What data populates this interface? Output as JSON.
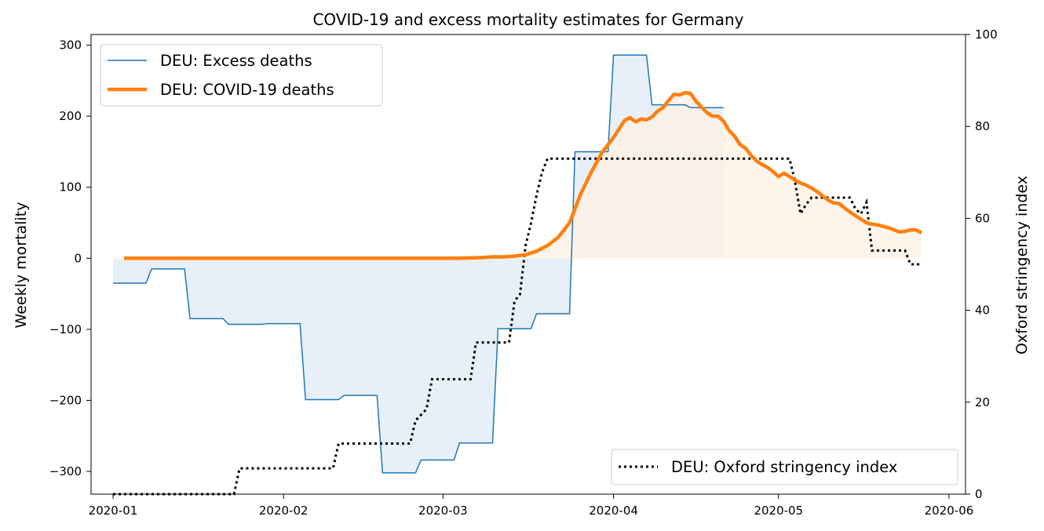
{
  "chart_data": {
    "type": "line",
    "title": "COVID-19 and excess mortality estimates for Germany",
    "ylabel": "Weekly mortality",
    "ylabel_right": "Oxford stringency index",
    "ylim": [
      -332,
      315
    ],
    "ylim_right": [
      0,
      100
    ],
    "xlim": [
      "2019-12-28",
      "2020-06-04"
    ],
    "x_ticks": [
      "2020-01",
      "2020-02",
      "2020-03",
      "2020-04",
      "2020-05",
      "2020-06"
    ],
    "y_ticks": [
      "300",
      "200",
      "100",
      "0",
      "−100",
      "−200",
      "−300"
    ],
    "y_right_ticks": [
      "100",
      "80",
      "60",
      "40",
      "20",
      "0"
    ],
    "grid": false,
    "legend_left": {
      "placement": "top-left",
      "entries": [
        "DEU: Excess deaths",
        "DEU: COVID-19 deaths"
      ]
    },
    "legend_right": {
      "placement": "bottom-right",
      "entries": [
        "DEU: Oxford stringency index"
      ]
    },
    "series": [
      {
        "name": "DEU: Excess deaths",
        "axis": "left",
        "color": "#1f77b4",
        "fill": "#e7f0f8",
        "style": "step",
        "x": [
          "2020-01-01",
          "2020-01-07",
          "2020-01-08",
          "2020-01-14",
          "2020-01-15",
          "2020-01-21",
          "2020-01-22",
          "2020-01-28",
          "2020-01-29",
          "2020-02-04",
          "2020-02-05",
          "2020-02-11",
          "2020-02-12",
          "2020-02-18",
          "2020-02-19",
          "2020-02-25",
          "2020-02-26",
          "2020-03-03",
          "2020-03-04",
          "2020-03-10",
          "2020-03-11",
          "2020-03-17",
          "2020-03-18",
          "2020-03-24",
          "2020-03-25",
          "2020-03-31",
          "2020-04-01",
          "2020-04-07",
          "2020-04-08",
          "2020-04-14",
          "2020-04-15",
          "2020-04-21"
        ],
        "y": [
          -35,
          -35,
          -15,
          -15,
          -85,
          -85,
          -93,
          -93,
          -92,
          -92,
          -199,
          -199,
          -193,
          -193,
          -302,
          -302,
          -284,
          -284,
          -260,
          -260,
          -99,
          -99,
          -78,
          -78,
          150,
          150,
          286,
          286,
          216,
          216,
          212,
          212
        ]
      },
      {
        "name": "DEU: COVID-19 deaths",
        "axis": "left",
        "color": "#ff7f0e",
        "fill": "#fff0e3",
        "style": "line",
        "x": [
          "2020-01-03",
          "2020-03-04",
          "2020-03-08",
          "2020-03-10",
          "2020-03-12",
          "2020-03-14",
          "2020-03-16",
          "2020-03-18",
          "2020-03-20",
          "2020-03-22",
          "2020-03-24",
          "2020-03-26",
          "2020-03-28",
          "2020-03-30",
          "2020-04-01",
          "2020-04-03",
          "2020-04-04",
          "2020-04-05",
          "2020-04-06",
          "2020-04-07",
          "2020-04-08",
          "2020-04-09",
          "2020-04-10",
          "2020-04-11",
          "2020-04-12",
          "2020-04-13",
          "2020-04-14",
          "2020-04-15",
          "2020-04-16",
          "2020-04-17",
          "2020-04-18",
          "2020-04-19",
          "2020-04-20",
          "2020-04-21",
          "2020-04-22",
          "2020-04-23",
          "2020-04-24",
          "2020-04-25",
          "2020-04-26",
          "2020-04-27",
          "2020-04-28",
          "2020-04-29",
          "2020-04-30",
          "2020-05-01",
          "2020-05-02",
          "2020-05-03",
          "2020-05-04",
          "2020-05-05",
          "2020-05-06",
          "2020-05-07",
          "2020-05-08",
          "2020-05-09",
          "2020-05-10",
          "2020-05-11",
          "2020-05-12",
          "2020-05-13",
          "2020-05-14",
          "2020-05-15",
          "2020-05-16",
          "2020-05-17",
          "2020-05-18",
          "2020-05-19",
          "2020-05-20",
          "2020-05-21",
          "2020-05-22",
          "2020-05-23",
          "2020-05-24",
          "2020-05-25",
          "2020-05-26",
          "2020-05-27"
        ],
        "y": [
          0,
          0,
          1,
          2,
          2,
          3,
          5,
          10,
          18,
          30,
          50,
          90,
          122,
          150,
          170,
          194,
          198,
          192,
          196,
          195,
          199,
          207,
          212,
          222,
          231,
          230,
          233,
          232,
          221,
          213,
          205,
          200,
          200,
          193,
          180,
          172,
          160,
          155,
          145,
          137,
          132,
          128,
          122,
          115,
          120,
          115,
          110,
          106,
          103,
          99,
          94,
          88,
          82,
          78,
          77,
          71,
          65,
          60,
          55,
          50,
          48,
          47,
          45,
          43,
          40,
          37,
          38,
          40,
          40,
          36
        ]
      },
      {
        "name": "DEU: Oxford stringency index",
        "axis": "right",
        "color": "#000000",
        "style": "dotted",
        "x": [
          "2020-01-01",
          "2020-01-23",
          "2020-01-24",
          "2020-02-10",
          "2020-02-11",
          "2020-02-24",
          "2020-02-25",
          "2020-02-27",
          "2020-02-28",
          "2020-03-06",
          "2020-03-07",
          "2020-03-13",
          "2020-03-14",
          "2020-03-15",
          "2020-03-16",
          "2020-03-17",
          "2020-03-18",
          "2020-03-19",
          "2020-03-20",
          "2020-03-21",
          "2020-03-22",
          "2020-05-03",
          "2020-05-04",
          "2020-05-05",
          "2020-05-06",
          "2020-05-07",
          "2020-05-08",
          "2020-05-14",
          "2020-05-15",
          "2020-05-16",
          "2020-05-17",
          "2020-05-18",
          "2020-05-24",
          "2020-05-25",
          "2020-05-26",
          "2020-05-27"
        ],
        "y": [
          0,
          0,
          5.6,
          5.6,
          11,
          11,
          16,
          18.5,
          25,
          25,
          33,
          33,
          42,
          43.5,
          54,
          59,
          65,
          70,
          73,
          73,
          73,
          73,
          68,
          61,
          63,
          64.5,
          64.5,
          64.5,
          62,
          61,
          63.5,
          53,
          53,
          50,
          50,
          50
        ]
      }
    ]
  }
}
